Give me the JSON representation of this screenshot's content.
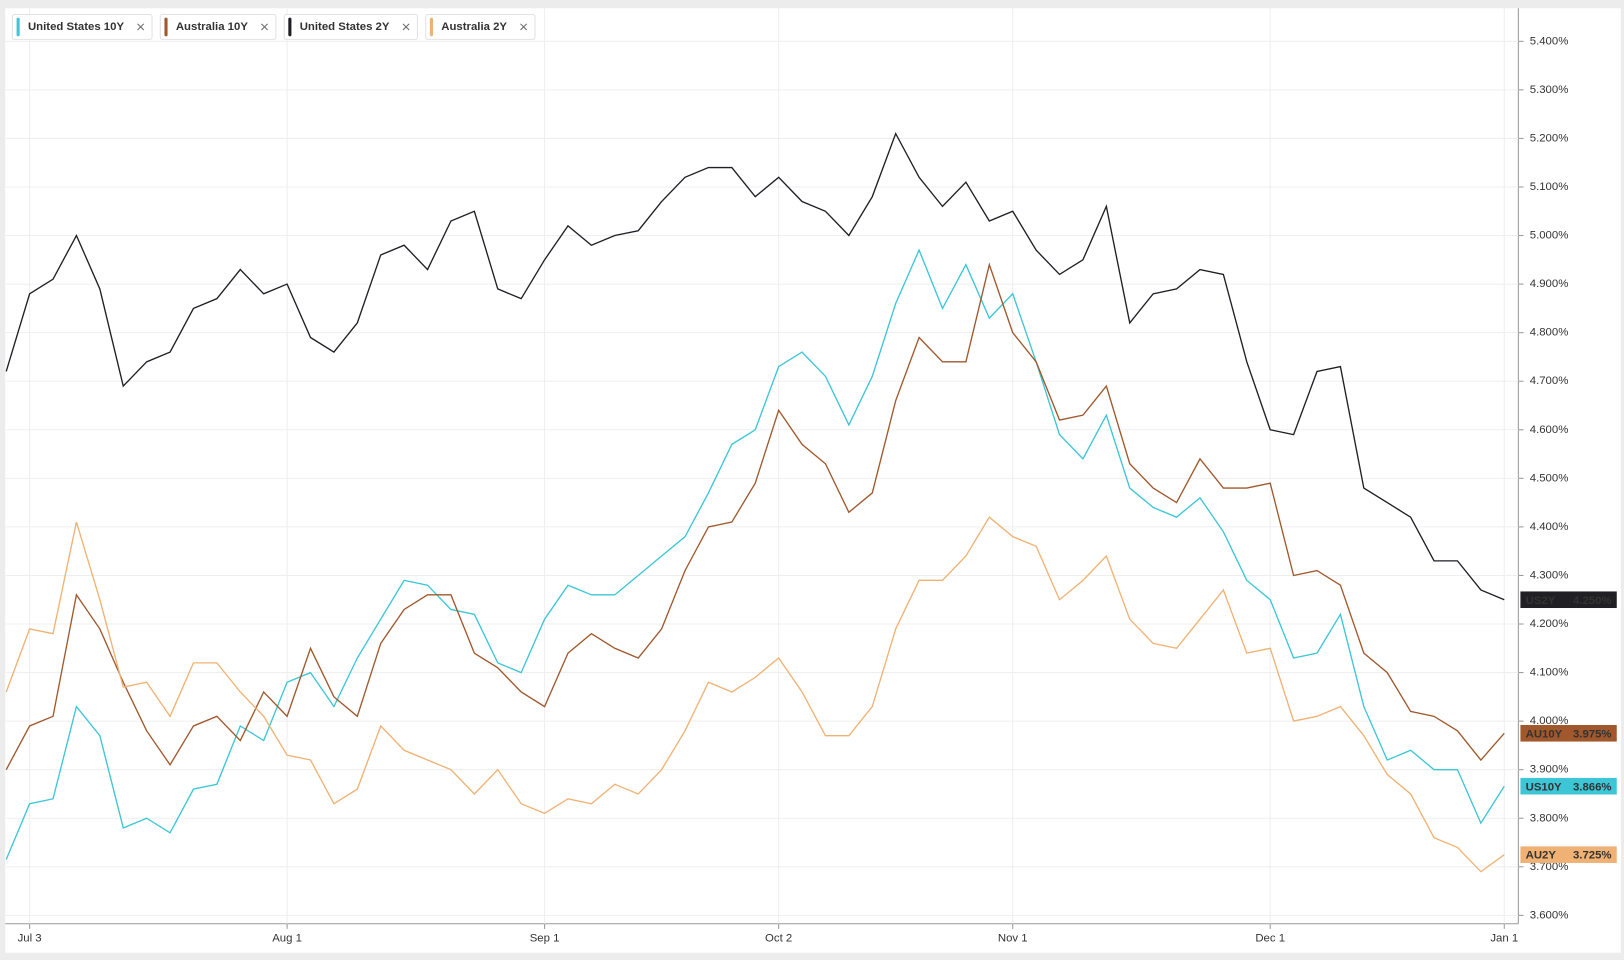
{
  "chart_data": {
    "type": "line",
    "grid": true,
    "legend": "top-left",
    "categories": [
      null,
      "Jul 3",
      null,
      null,
      null,
      null,
      null,
      null,
      null,
      null,
      null,
      null,
      "Aug 1",
      null,
      null,
      null,
      null,
      null,
      null,
      null,
      null,
      null,
      null,
      "Sep 1",
      null,
      null,
      null,
      null,
      null,
      null,
      null,
      null,
      null,
      "Oct 2",
      null,
      null,
      null,
      null,
      null,
      null,
      null,
      null,
      null,
      "Nov 1",
      null,
      null,
      null,
      null,
      null,
      null,
      null,
      null,
      null,
      null,
      "Dec 1",
      null,
      null,
      null,
      null,
      null,
      null,
      null,
      null,
      null,
      "Jan 1"
    ],
    "ylim": [
      3.587,
      5.468
    ],
    "yticks": [
      {
        "value": 3.6,
        "label": "3.600%"
      },
      {
        "value": 3.7,
        "label": "3.700%"
      },
      {
        "value": 3.8,
        "label": "3.800%"
      },
      {
        "value": 3.9,
        "label": "3.900%"
      },
      {
        "value": 4.0,
        "label": "4.000%"
      },
      {
        "value": 4.1,
        "label": "4.100%"
      },
      {
        "value": 4.2,
        "label": "4.200%"
      },
      {
        "value": 4.3,
        "label": "4.300%"
      },
      {
        "value": 4.4,
        "label": "4.400%"
      },
      {
        "value": 4.5,
        "label": "4.500%"
      },
      {
        "value": 4.6,
        "label": "4.600%"
      },
      {
        "value": 4.7,
        "label": "4.700%"
      },
      {
        "value": 4.8,
        "label": "4.800%"
      },
      {
        "value": 4.9,
        "label": "4.900%"
      },
      {
        "value": 5.0,
        "label": "5.000%"
      },
      {
        "value": 5.1,
        "label": "5.100%"
      },
      {
        "value": 5.2,
        "label": "5.200%"
      },
      {
        "value": 5.3,
        "label": "5.300%"
      },
      {
        "value": 5.4,
        "label": "5.400%"
      }
    ],
    "series": [
      {
        "name": "United States 10Y",
        "color": "#3cc6d6",
        "tag": "US10Y",
        "last_label": "3.866%",
        "tag_text": "#1a1a1a",
        "values": [
          3.715,
          3.83,
          3.84,
          4.03,
          3.97,
          3.78,
          3.8,
          3.77,
          3.86,
          3.87,
          3.99,
          3.96,
          4.08,
          4.1,
          4.03,
          4.13,
          4.21,
          4.29,
          4.28,
          4.23,
          4.22,
          4.12,
          4.1,
          4.21,
          4.28,
          4.26,
          4.26,
          4.3,
          4.34,
          4.38,
          4.47,
          4.57,
          4.6,
          4.73,
          4.76,
          4.71,
          4.61,
          4.71,
          4.86,
          4.97,
          4.85,
          4.94,
          4.83,
          4.88,
          4.74,
          4.59,
          4.54,
          4.63,
          4.48,
          4.44,
          4.42,
          4.46,
          4.39,
          4.29,
          4.25,
          4.13,
          4.14,
          4.22,
          4.03,
          3.92,
          3.94,
          3.9,
          3.9,
          3.79,
          3.866
        ]
      },
      {
        "name": "Australia 10Y",
        "color": "#a0582c",
        "tag": "AU10Y",
        "last_label": "3.975%",
        "tag_text": "#ffffff",
        "values": [
          3.9,
          3.99,
          4.01,
          4.26,
          4.19,
          4.08,
          3.98,
          3.91,
          3.99,
          4.01,
          3.96,
          4.06,
          4.01,
          4.15,
          4.05,
          4.01,
          4.16,
          4.23,
          4.26,
          4.26,
          4.14,
          4.11,
          4.06,
          4.03,
          4.14,
          4.18,
          4.15,
          4.13,
          4.19,
          4.31,
          4.4,
          4.41,
          4.49,
          4.64,
          4.57,
          4.53,
          4.43,
          4.47,
          4.66,
          4.79,
          4.74,
          4.74,
          4.94,
          4.8,
          4.74,
          4.62,
          4.63,
          4.69,
          4.53,
          4.48,
          4.45,
          4.54,
          4.48,
          4.48,
          4.49,
          4.3,
          4.31,
          4.28,
          4.14,
          4.1,
          4.02,
          4.01,
          3.98,
          3.92,
          3.975
        ]
      },
      {
        "name": "United States 2Y",
        "color": "#1f1f24",
        "tag": "US2Y",
        "last_label": "4.250%",
        "tag_text": "#ffffff",
        "values": [
          4.72,
          4.88,
          4.91,
          5.0,
          4.89,
          4.69,
          4.74,
          4.76,
          4.85,
          4.87,
          4.93,
          4.88,
          4.9,
          4.79,
          4.76,
          4.82,
          4.96,
          4.98,
          4.93,
          5.03,
          5.05,
          4.89,
          4.87,
          4.95,
          5.02,
          4.98,
          5.0,
          5.01,
          5.07,
          5.12,
          5.14,
          5.14,
          5.08,
          5.12,
          5.07,
          5.05,
          5.0,
          5.08,
          5.21,
          5.12,
          5.06,
          5.11,
          5.03,
          5.05,
          4.97,
          4.92,
          4.95,
          5.06,
          4.82,
          4.88,
          4.89,
          4.93,
          4.92,
          4.74,
          4.6,
          4.59,
          4.72,
          4.73,
          4.48,
          4.45,
          4.42,
          4.33,
          4.33,
          4.27,
          4.25
        ]
      },
      {
        "name": "Australia 2Y",
        "color": "#f0b274",
        "tag": "AU2Y",
        "last_label": "3.725%",
        "tag_text": "#1a1a1a",
        "values": [
          4.06,
          4.19,
          4.18,
          4.41,
          4.25,
          4.07,
          4.08,
          4.01,
          4.12,
          4.12,
          4.06,
          4.01,
          3.93,
          3.92,
          3.83,
          3.86,
          3.99,
          3.94,
          3.92,
          3.9,
          3.85,
          3.9,
          3.83,
          3.81,
          3.84,
          3.83,
          3.87,
          3.85,
          3.9,
          3.98,
          4.08,
          4.06,
          4.09,
          4.13,
          4.06,
          3.97,
          3.97,
          4.03,
          4.19,
          4.29,
          4.29,
          4.34,
          4.42,
          4.38,
          4.36,
          4.25,
          4.29,
          4.34,
          4.21,
          4.16,
          4.15,
          4.21,
          4.27,
          4.14,
          4.15,
          4.0,
          4.01,
          4.03,
          3.97,
          3.89,
          3.85,
          3.76,
          3.74,
          3.69,
          3.725
        ]
      }
    ]
  }
}
